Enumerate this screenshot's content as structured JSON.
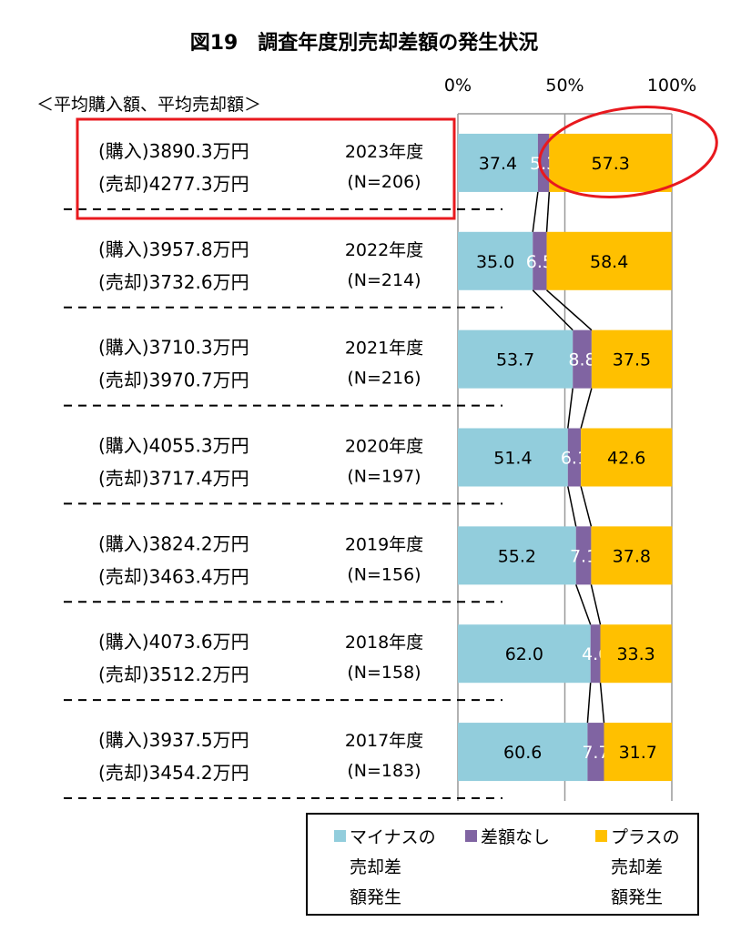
{
  "chart_data": {
    "type": "bar",
    "orientation": "horizontal",
    "stacked": "percent",
    "title": "図19　調査年度別売却差額の発生状況",
    "subtitle": "＜平均購入額、平均売却額＞",
    "x_ticks": [
      "0%",
      "50%",
      "100%"
    ],
    "xlim": [
      0,
      100
    ],
    "categories": [
      {
        "year": "2023年度",
        "n": "(N=206)",
        "buy": "(購入)3890.3万円",
        "sell": "(売却)4277.3万円"
      },
      {
        "year": "2022年度",
        "n": "(N=214)",
        "buy": "(購入)3957.8万円",
        "sell": "(売却)3732.6万円"
      },
      {
        "year": "2021年度",
        "n": "(N=216)",
        "buy": "(購入)3710.3万円",
        "sell": "(売却)3970.7万円"
      },
      {
        "year": "2020年度",
        "n": "(N=197)",
        "buy": "(購入)4055.3万円",
        "sell": "(売却)3717.4万円"
      },
      {
        "year": "2019年度",
        "n": "(N=156)",
        "buy": "(購入)3824.2万円",
        "sell": "(売却)3463.4万円"
      },
      {
        "year": "2018年度",
        "n": "(N=158)",
        "buy": "(購入)4073.6万円",
        "sell": "(売却)3512.2万円"
      },
      {
        "year": "2017年度",
        "n": "(N=183)",
        "buy": "(購入)3937.5万円",
        "sell": "(売却)3454.2万円"
      }
    ],
    "series": [
      {
        "name": "マイナスの売却差額発生",
        "legend_lines": [
          "マイナスの",
          "売却差",
          "額発生"
        ],
        "color": "#92CDDC",
        "label_color": "#000000",
        "values": [
          37.4,
          35.0,
          53.7,
          51.4,
          55.2,
          62.0,
          60.6
        ]
      },
      {
        "name": "差額なし",
        "legend_lines": [
          "差額なし"
        ],
        "color": "#8064A2",
        "label_color": "#FFFFFF",
        "values": [
          5.3,
          6.5,
          8.8,
          6.1,
          7.1,
          4.6,
          7.7
        ]
      },
      {
        "name": "プラスの売却差額発生",
        "legend_lines": [
          "プラスの",
          "売却差",
          "額発生"
        ],
        "color": "#FFC000",
        "label_color": "#000000",
        "values": [
          57.3,
          58.4,
          37.5,
          42.6,
          37.8,
          33.3,
          31.7
        ]
      }
    ],
    "legend_position": "bottom-right",
    "annotation_color": "#E8191E"
  }
}
